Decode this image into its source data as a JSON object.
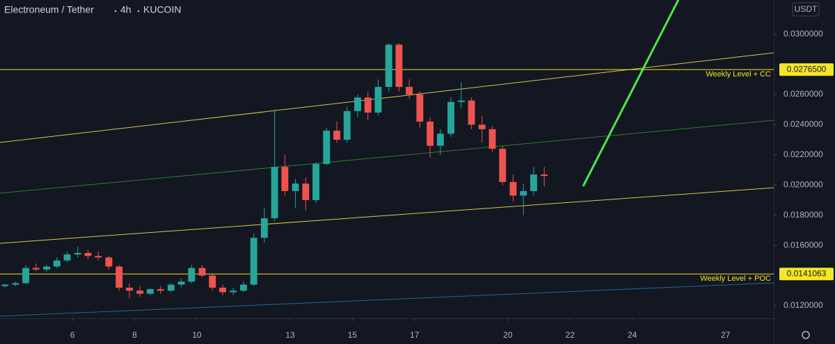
{
  "chart_data": {
    "type": "candlestick",
    "symbol": "Electroneum / Tether",
    "interval": "4h",
    "exchange": "KUCOIN",
    "currency": "USDT",
    "up_color": "#26a69a",
    "down_color": "#ef5350",
    "xlim": [
      3.67,
      28.55
    ],
    "ylim": [
      0.01117,
      0.03226
    ],
    "xticks": [
      6,
      8,
      10,
      13,
      15,
      17,
      20,
      22,
      24,
      27
    ],
    "yticks": [
      {
        "value": 0.012,
        "label": "0.0120000"
      },
      {
        "value": 0.016,
        "label": "0.0160000"
      },
      {
        "value": 0.018,
        "label": "0.0180000"
      },
      {
        "value": 0.02,
        "label": "0.0200000"
      },
      {
        "value": 0.022,
        "label": "0.0220000"
      },
      {
        "value": 0.024,
        "label": "0.0240000"
      },
      {
        "value": 0.026,
        "label": "0.0260000"
      },
      {
        "value": 0.03,
        "label": "0.0300000"
      }
    ],
    "x": [
      3.83,
      4.17,
      4.5,
      4.83,
      5.17,
      5.5,
      5.83,
      6.17,
      6.5,
      6.83,
      7.17,
      7.5,
      7.83,
      8.17,
      8.5,
      8.83,
      9.17,
      9.5,
      9.83,
      10.17,
      10.5,
      10.83,
      11.17,
      11.5,
      11.83,
      12.17,
      12.5,
      12.83,
      13.17,
      13.5,
      13.83,
      14.17,
      14.5,
      14.83,
      15.17,
      15.5,
      15.83,
      16.17,
      16.5,
      16.83,
      17.17,
      17.5,
      17.83,
      18.17,
      18.5,
      18.83,
      19.17,
      19.5,
      19.83,
      20.17,
      20.5,
      20.83,
      21.17
    ],
    "open": [
      0.0133,
      0.0134,
      0.0135,
      0.0145,
      0.0144,
      0.0146,
      0.015,
      0.0154,
      0.0155,
      0.0153,
      0.0152,
      0.0146,
      0.0132,
      0.013,
      0.0128,
      0.0131,
      0.013,
      0.0134,
      0.0136,
      0.0145,
      0.014,
      0.0132,
      0.0129,
      0.013,
      0.0134,
      0.0165,
      0.0178,
      0.0212,
      0.0196,
      0.0201,
      0.019,
      0.0214,
      0.0236,
      0.023,
      0.0249,
      0.0258,
      0.0248,
      0.0265,
      0.0293,
      0.0265,
      0.026,
      0.0242,
      0.0226,
      0.0234,
      0.0255,
      0.0256,
      0.024,
      0.0237,
      0.0224,
      0.0202,
      0.0193,
      0.0196,
      0.0207
    ],
    "high": [
      0.01345,
      0.0136,
      0.0147,
      0.0148,
      0.0147,
      0.0152,
      0.0156,
      0.0159,
      0.0157,
      0.0156,
      0.0153,
      0.0147,
      0.0135,
      0.0133,
      0.0132,
      0.0133,
      0.0135,
      0.0138,
      0.0147,
      0.0147,
      0.0141,
      0.0134,
      0.0132,
      0.0136,
      0.0168,
      0.0185,
      0.025,
      0.022,
      0.0204,
      0.0205,
      0.0215,
      0.0238,
      0.0242,
      0.0252,
      0.026,
      0.0262,
      0.027,
      0.0294,
      0.0294,
      0.027,
      0.0262,
      0.0245,
      0.0237,
      0.0258,
      0.0268,
      0.0258,
      0.0246,
      0.0239,
      0.0226,
      0.0207,
      0.0201,
      0.0212,
      0.0212
    ],
    "low": [
      0.0132,
      0.0133,
      0.01345,
      0.0143,
      0.01425,
      0.0145,
      0.0149,
      0.0152,
      0.0151,
      0.015,
      0.0144,
      0.013,
      0.0125,
      0.0126,
      0.0127,
      0.0128,
      0.0129,
      0.0132,
      0.0135,
      0.0139,
      0.013,
      0.0127,
      0.0127,
      0.0129,
      0.0133,
      0.0162,
      0.0176,
      0.0193,
      0.0185,
      0.0183,
      0.0188,
      0.0213,
      0.0228,
      0.0228,
      0.0245,
      0.0243,
      0.0246,
      0.0262,
      0.0262,
      0.0257,
      0.0238,
      0.0218,
      0.022,
      0.0232,
      0.0251,
      0.0237,
      0.0228,
      0.0222,
      0.02,
      0.0189,
      0.018,
      0.0193,
      0.0199
    ],
    "close": [
      0.0134,
      0.0135,
      0.0145,
      0.0144,
      0.0146,
      0.015,
      0.0154,
      0.0155,
      0.0153,
      0.0152,
      0.0146,
      0.0132,
      0.013,
      0.0128,
      0.0131,
      0.013,
      0.0134,
      0.0136,
      0.0145,
      0.014,
      0.0132,
      0.0129,
      0.013,
      0.0134,
      0.0165,
      0.0178,
      0.0212,
      0.0196,
      0.0201,
      0.019,
      0.0214,
      0.0236,
      0.023,
      0.0249,
      0.0258,
      0.0248,
      0.0265,
      0.0293,
      0.0265,
      0.026,
      0.0242,
      0.0226,
      0.0234,
      0.0255,
      0.0256,
      0.024,
      0.0237,
      0.0224,
      0.0202,
      0.0193,
      0.0196,
      0.0207,
      0.0206
    ],
    "levels": [
      {
        "label": "Weekly Level + CC",
        "value": 0.02765,
        "value_label": "0.0276500",
        "color": "#f5e626"
      },
      {
        "label": "Weekly Level + POC",
        "value": 0.0141063,
        "value_label": "0.0141063",
        "color": "#f5e626"
      }
    ],
    "trend_lines": [
      {
        "x": [
          3.67,
          28.55
        ],
        "y": [
          0.02282,
          0.02876
        ],
        "color": "#d8c94a"
      },
      {
        "x": [
          3.67,
          28.55
        ],
        "y": [
          0.01946,
          0.02429
        ],
        "color": "#2e7d32"
      },
      {
        "x": [
          3.67,
          28.55
        ],
        "y": [
          0.01614,
          0.01982
        ],
        "color": "#d8c94a"
      },
      {
        "x": [
          3.67,
          28.55
        ],
        "y": [
          0.01131,
          0.01352
        ],
        "color": "#1e6a99"
      },
      {
        "x": [
          22.42,
          25.48
        ],
        "y": [
          0.01992,
          0.03226
        ],
        "color": "#4ce84c",
        "width": 3
      }
    ]
  }
}
